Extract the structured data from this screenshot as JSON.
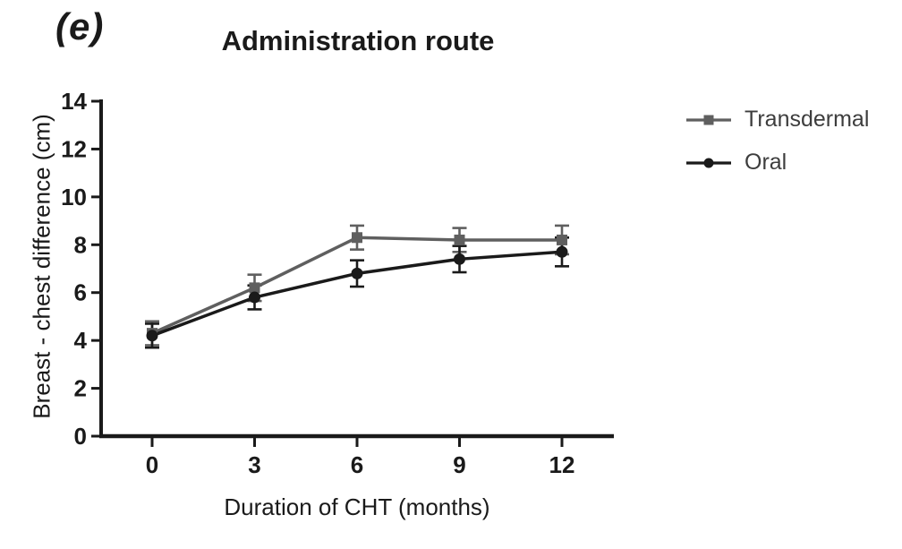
{
  "panel_label": "(e)",
  "title": "Administration route",
  "legend": {
    "items": [
      {
        "label": "Transdermal",
        "marker": "square",
        "color": "#5f5f5f"
      },
      {
        "label": "Oral",
        "marker": "circle",
        "color": "#1a1a1a"
      }
    ]
  },
  "chart_data": {
    "type": "line",
    "title": "Administration route",
    "xlabel": "Duration of CHT (months)",
    "ylabel": "Breast - chest difference (cm)",
    "x": [
      0,
      3,
      6,
      9,
      12
    ],
    "xticks": [
      0,
      3,
      6,
      9,
      12
    ],
    "yticks": [
      0,
      2,
      4,
      6,
      8,
      10,
      12,
      14
    ],
    "xlim": [
      0,
      12
    ],
    "ylim": [
      0,
      14
    ],
    "grid": false,
    "error_bars": true,
    "legend_position": "right",
    "axis_color": "#1a1a1a",
    "series": [
      {
        "name": "Transdermal",
        "marker": "square",
        "color": "#5f5f5f",
        "values": [
          4.3,
          6.2,
          8.3,
          8.2,
          8.2
        ],
        "errors": [
          0.5,
          0.55,
          0.5,
          0.5,
          0.6
        ]
      },
      {
        "name": "Oral",
        "marker": "circle",
        "color": "#1a1a1a",
        "values": [
          4.2,
          5.8,
          6.8,
          7.4,
          7.7
        ],
        "errors": [
          0.5,
          0.5,
          0.55,
          0.55,
          0.6
        ]
      }
    ]
  }
}
